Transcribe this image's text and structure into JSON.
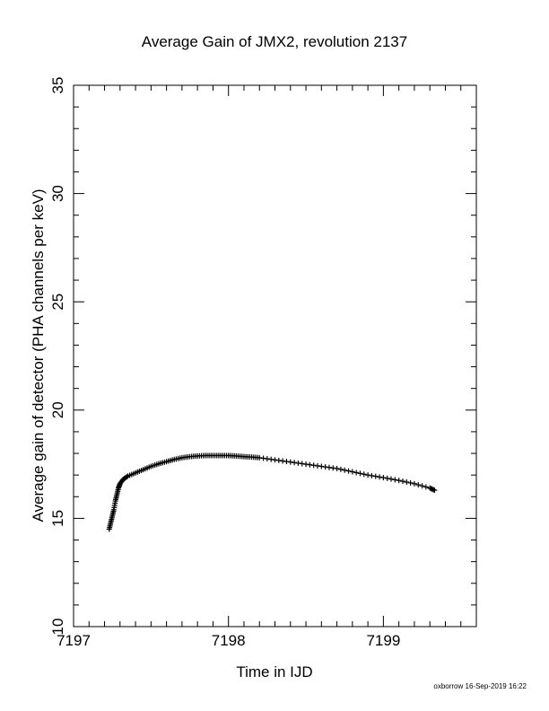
{
  "chart_data": {
    "type": "scatter",
    "title": "Average Gain of JMX2, revolution 2137",
    "xlabel": "Time in IJD",
    "ylabel": "Average gain of detector (PHA channels per keV)",
    "xlim": [
      7197,
      7199.6
    ],
    "ylim": [
      10,
      35
    ],
    "xticks": [
      7197,
      7198,
      7199
    ],
    "xtick_labels": [
      "7197",
      "7198",
      "7199"
    ],
    "yticks": [
      10,
      15,
      20,
      25,
      30,
      35
    ],
    "ytick_labels": [
      "10",
      "15",
      "20",
      "25",
      "30",
      "35"
    ],
    "marker": "+",
    "marker_color": "#000000",
    "grid": false,
    "series": [
      {
        "x": [
          7197.23,
          7197.24,
          7197.25,
          7197.26,
          7197.27,
          7197.28,
          7197.29,
          7197.3,
          7197.32,
          7197.35,
          7197.4,
          7197.45,
          7197.5,
          7197.55,
          7197.6,
          7197.65,
          7197.7,
          7197.75,
          7197.8,
          7197.85,
          7197.9,
          7197.95,
          7198.0,
          7198.05,
          7198.1,
          7198.15,
          7198.2,
          7198.3,
          7198.4,
          7198.5,
          7198.6,
          7198.7,
          7198.8,
          7198.9,
          7199.0,
          7199.1,
          7199.2,
          7199.3,
          7199.33
        ],
        "y": [
          14.5,
          14.8,
          15.1,
          15.4,
          15.8,
          16.1,
          16.4,
          16.6,
          16.8,
          16.95,
          17.1,
          17.25,
          17.4,
          17.52,
          17.62,
          17.72,
          17.8,
          17.85,
          17.88,
          17.9,
          17.9,
          17.9,
          17.9,
          17.88,
          17.85,
          17.83,
          17.8,
          17.7,
          17.6,
          17.5,
          17.4,
          17.3,
          17.15,
          17.0,
          16.88,
          16.75,
          16.6,
          16.4,
          16.3
        ]
      }
    ]
  },
  "footer": "oxborrow 16-Sep-2019 16:22"
}
